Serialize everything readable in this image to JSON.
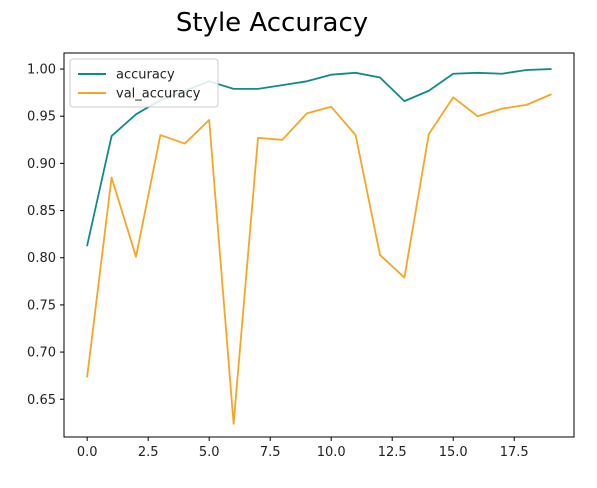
{
  "chart_data": {
    "type": "line",
    "title": "Style Accuracy",
    "xlabel": "",
    "ylabel": "",
    "xlim": [
      -0.95,
      19.95
    ],
    "ylim": [
      0.61,
      1.017
    ],
    "xticks": [
      0.0,
      2.5,
      5.0,
      7.5,
      10.0,
      12.5,
      15.0,
      17.5
    ],
    "xtick_labels": [
      "0.0",
      "2.5",
      "5.0",
      "7.5",
      "10.0",
      "12.5",
      "15.0",
      "17.5"
    ],
    "yticks": [
      0.65,
      0.7,
      0.75,
      0.8,
      0.85,
      0.9,
      0.95,
      1.0
    ],
    "ytick_labels": [
      "0.65",
      "0.70",
      "0.75",
      "0.80",
      "0.85",
      "0.90",
      "0.95",
      "1.00"
    ],
    "grid": false,
    "legend_position": "top-left",
    "x": [
      0,
      1,
      2,
      3,
      4,
      5,
      6,
      7,
      8,
      9,
      10,
      11,
      12,
      13,
      14,
      15,
      16,
      17,
      18,
      19
    ],
    "series": [
      {
        "name": "accuracy",
        "color": "#138a8a",
        "values": [
          0.813,
          0.929,
          0.952,
          0.967,
          0.977,
          0.987,
          0.979,
          0.979,
          0.983,
          0.987,
          0.994,
          0.996,
          0.991,
          0.966,
          0.977,
          0.995,
          0.996,
          0.995,
          0.999,
          1.0
        ]
      },
      {
        "name": "val_accuracy",
        "color": "#f5a623",
        "values": [
          0.674,
          0.885,
          0.801,
          0.93,
          0.921,
          0.946,
          0.624,
          0.927,
          0.925,
          0.953,
          0.96,
          0.93,
          0.803,
          0.779,
          0.931,
          0.97,
          0.95,
          0.958,
          0.962,
          0.973
        ]
      }
    ]
  }
}
